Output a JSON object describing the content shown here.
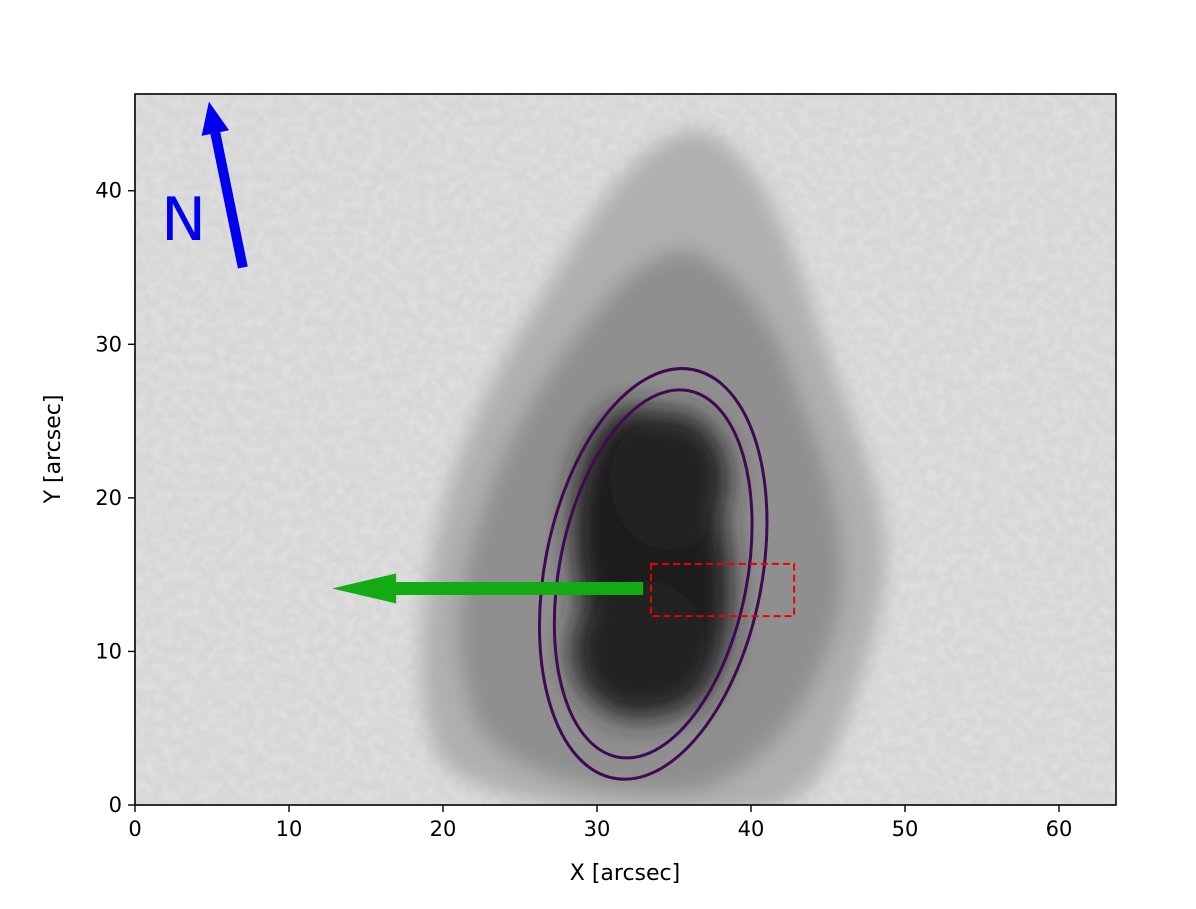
{
  "figure": {
    "xlabel": "X [arcsec]",
    "ylabel": "Y [arcsec]",
    "xlim": [
      0,
      63.7
    ],
    "ylim": [
      0,
      46.3
    ],
    "xticks": [
      0,
      10,
      20,
      30,
      40,
      50,
      60
    ],
    "yticks": [
      0,
      10,
      20,
      30,
      40
    ],
    "image_type": "grayscale continuum intensity map of a sunspot (umbra and penumbra) with granulation",
    "north_arrow": {
      "label": "N",
      "color": "#0000ee",
      "tail": [
        7.0,
        35.0
      ],
      "head": [
        4.8,
        45.8
      ]
    },
    "direction_arrow": {
      "color": "#14aa14",
      "tail": [
        33.0,
        14.1
      ],
      "head": [
        12.8,
        14.1
      ]
    },
    "box": {
      "color": "#ee0000",
      "style": "dashed",
      "x0": 33.5,
      "x1": 42.8,
      "y0": 12.3,
      "y1": 15.7
    },
    "contours": {
      "color": "#3f0a52",
      "ellipses": [
        {
          "cx": 33.65,
          "cy": 15.05,
          "rx": 7.05,
          "ry": 13.55,
          "tilt_deg": -11
        },
        {
          "cx": 33.65,
          "cy": 15.05,
          "rx": 6.1,
          "ry": 12.15,
          "tilt_deg": -11
        }
      ]
    }
  }
}
